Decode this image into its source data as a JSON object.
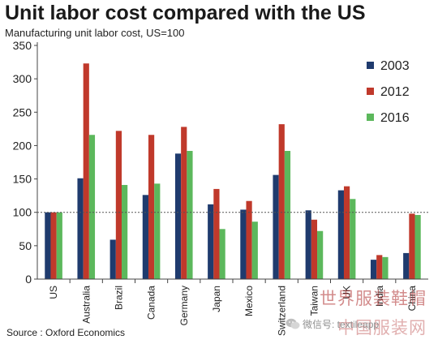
{
  "title": "Unit labor cost compared with the US",
  "subtitle": "Manufacturing unit labor cost, US=100",
  "source": "Source : Oxford Economics",
  "watermark": {
    "cn_text": "世界服装鞋帽",
    "cn_text2": "中国服装网",
    "wechat_label": "微信号: textileapp"
  },
  "colors": {
    "2003": "#1f3b6e",
    "2012": "#c0392b",
    "2016": "#5cb85c",
    "reference": "#555555",
    "text": "#222222"
  },
  "chart_data": {
    "type": "bar",
    "categories": [
      "US",
      "Australia",
      "Brazil",
      "Canada",
      "Germany",
      "Japan",
      "Mexico",
      "Switzerland",
      "Taiwan",
      "UK",
      "India",
      "China"
    ],
    "series": [
      {
        "name": "2003",
        "values": [
          100,
          151,
          59,
          126,
          188,
          112,
          104,
          156,
          103,
          133,
          29,
          39
        ]
      },
      {
        "name": "2012",
        "values": [
          100,
          323,
          222,
          216,
          228,
          135,
          117,
          232,
          89,
          139,
          36,
          98
        ]
      },
      {
        "name": "2016",
        "values": [
          100,
          216,
          141,
          143,
          192,
          75,
          86,
          192,
          72,
          120,
          33,
          96
        ]
      }
    ],
    "ylim": [
      0,
      350
    ],
    "yticks": [
      0,
      50,
      100,
      150,
      200,
      250,
      300,
      350
    ],
    "reference_line": 100,
    "xlabel": "",
    "ylabel": "",
    "legend_position": "top-right",
    "grid": false
  }
}
